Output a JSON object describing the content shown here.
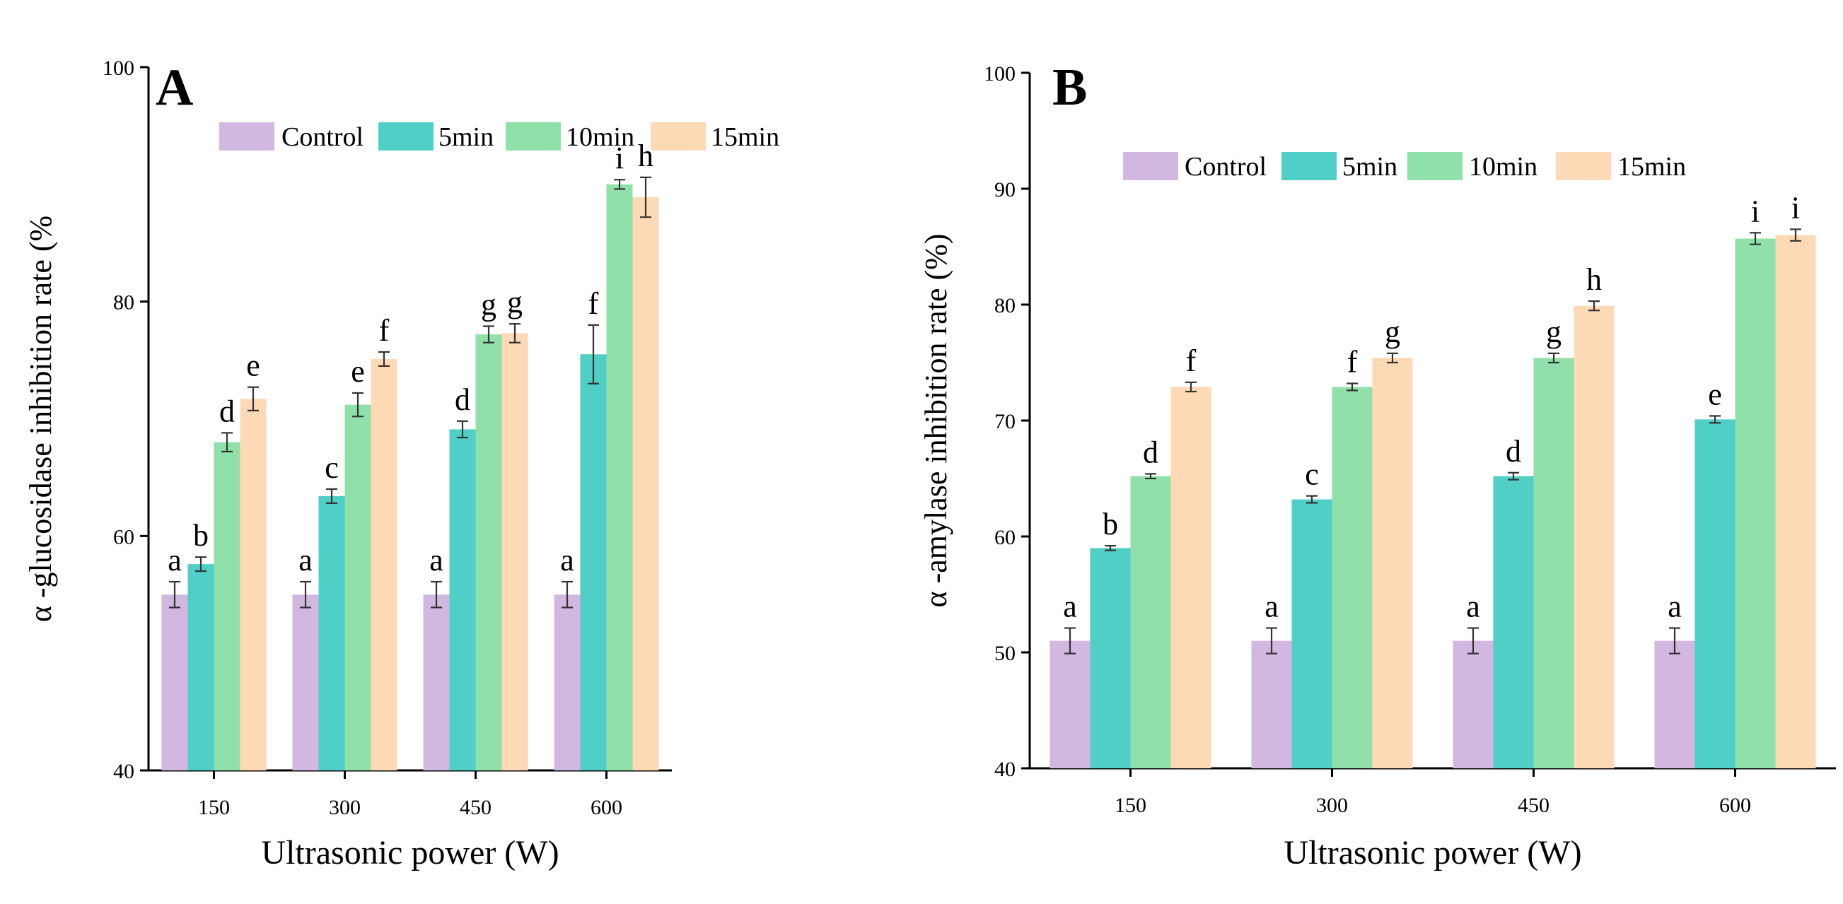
{
  "chart_data": [
    {
      "id": "A",
      "type": "bar",
      "panel_label": "A",
      "xlabel": "Ultrasonic power (W)",
      "ylabel": "α -glucosidase inhibition rate (%",
      "categories": [
        "150",
        "300",
        "450",
        "600"
      ],
      "ylim": [
        40,
        100
      ],
      "yticks": [
        40,
        60,
        80,
        100
      ],
      "legend_position": "top",
      "series": [
        {
          "name": "Control",
          "color": "#d2b8e0",
          "values": [
            55.0,
            55.0,
            55.0,
            55.0
          ],
          "errors": [
            1.1,
            1.1,
            1.1,
            1.1
          ],
          "letters": [
            "a",
            "a",
            "a",
            "a"
          ]
        },
        {
          "name": "5min",
          "color": "#4fcfc6",
          "values": [
            57.6,
            63.4,
            69.1,
            75.5
          ],
          "errors": [
            0.6,
            0.6,
            0.7,
            2.5
          ],
          "letters": [
            "b",
            "c",
            "d",
            "f"
          ]
        },
        {
          "name": "10min",
          "color": "#90e0aa",
          "values": [
            68.0,
            71.2,
            77.2,
            90.0
          ],
          "errors": [
            0.8,
            1.0,
            0.7,
            0.4
          ],
          "letters": [
            "d",
            "e",
            "g",
            "i"
          ]
        },
        {
          "name": "15min",
          "color": "#fdd9b5",
          "values": [
            71.7,
            75.1,
            77.3,
            88.9
          ],
          "errors": [
            1.0,
            0.6,
            0.8,
            1.7
          ],
          "letters": [
            "e",
            "f",
            "g",
            "h"
          ]
        }
      ]
    },
    {
      "id": "B",
      "type": "bar",
      "panel_label": "B",
      "xlabel": "Ultrasonic power (W)",
      "ylabel": "α -amylase inhibition rate (%)",
      "categories": [
        "150",
        "300",
        "450",
        "600"
      ],
      "ylim": [
        40,
        100
      ],
      "yticks": [
        40,
        50,
        60,
        70,
        80,
        90,
        100
      ],
      "legend_position": "top",
      "series": [
        {
          "name": "Control",
          "color": "#d2b8e0",
          "values": [
            51.0,
            51.0,
            51.0,
            51.0
          ],
          "errors": [
            1.1,
            1.1,
            1.1,
            1.1
          ],
          "letters": [
            "a",
            "a",
            "a",
            "a"
          ]
        },
        {
          "name": "5min",
          "color": "#4fcfc6",
          "values": [
            59.0,
            63.2,
            65.2,
            70.1
          ],
          "errors": [
            0.2,
            0.3,
            0.3,
            0.3
          ],
          "letters": [
            "b",
            "c",
            "d",
            "e"
          ]
        },
        {
          "name": "10min",
          "color": "#90e0aa",
          "values": [
            65.2,
            72.9,
            75.4,
            85.7
          ],
          "errors": [
            0.2,
            0.3,
            0.4,
            0.5
          ],
          "letters": [
            "d",
            "f",
            "g",
            "i"
          ]
        },
        {
          "name": "15min",
          "color": "#fdd9b5",
          "values": [
            72.9,
            75.4,
            79.9,
            86.0
          ],
          "errors": [
            0.4,
            0.4,
            0.4,
            0.5
          ],
          "letters": [
            "f",
            "g",
            "h",
            "i"
          ]
        }
      ]
    }
  ]
}
